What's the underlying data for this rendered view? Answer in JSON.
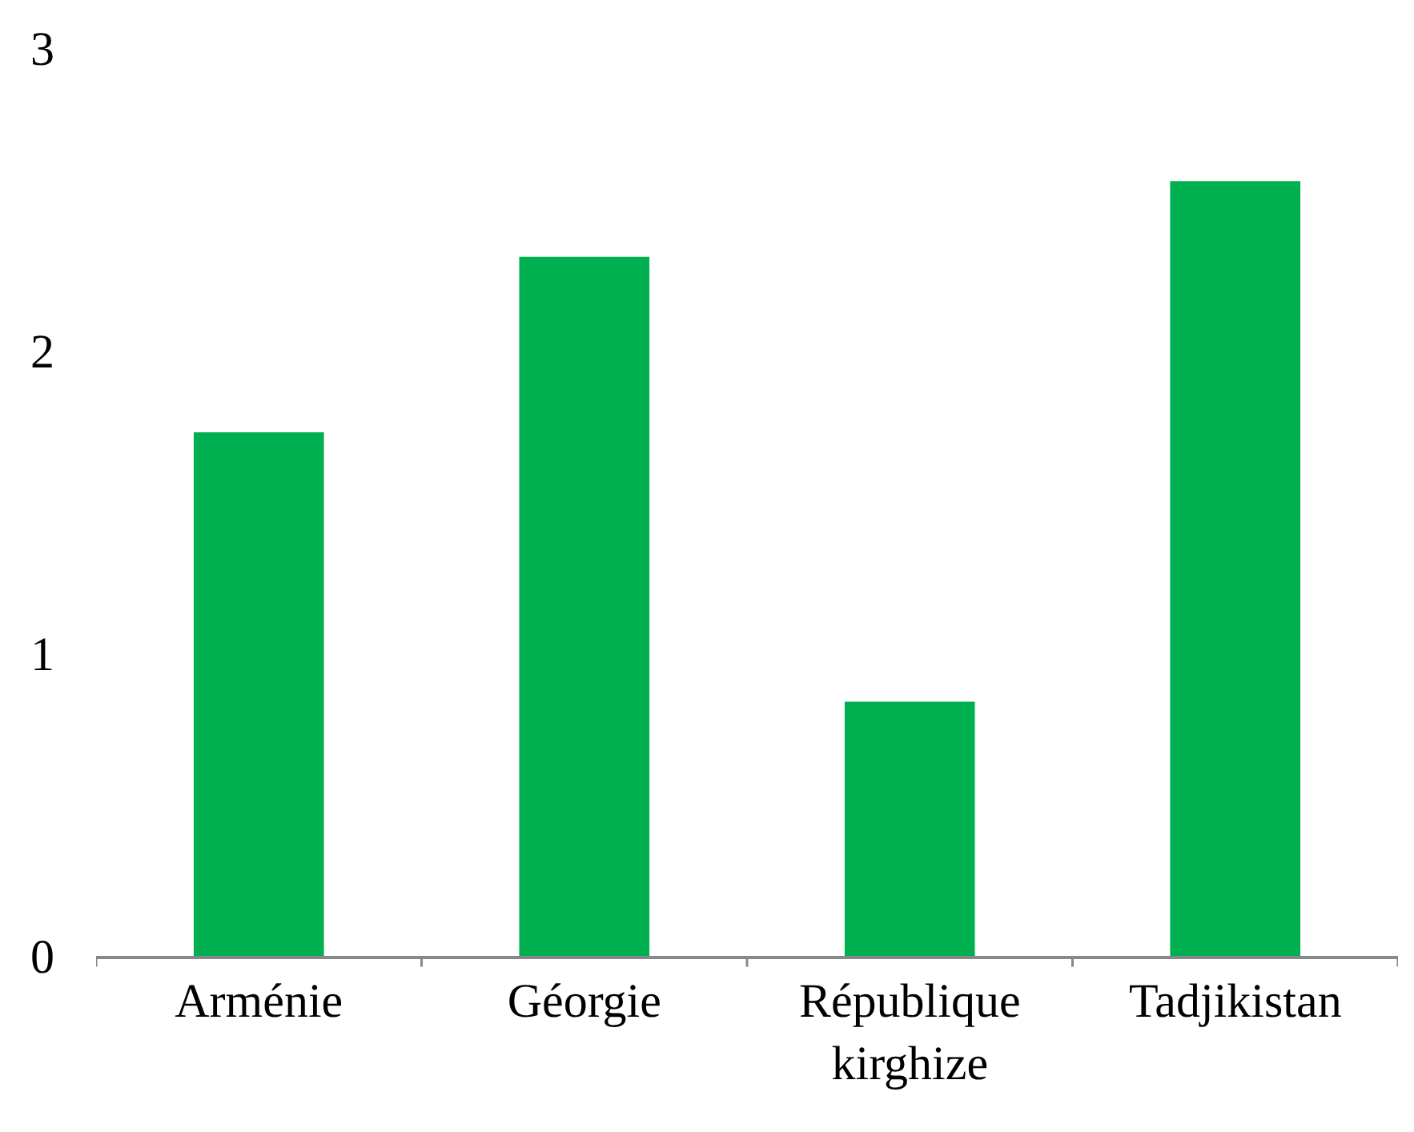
{
  "chart_data": {
    "type": "bar",
    "categories": [
      "Arménie",
      "Géorgie",
      "République kirghize",
      "Tadjikistan"
    ],
    "values": [
      1.73,
      2.31,
      0.84,
      2.56
    ],
    "color": "#00b050",
    "ylim": [
      0,
      3
    ],
    "yticks": [
      0,
      1,
      2,
      3
    ]
  }
}
